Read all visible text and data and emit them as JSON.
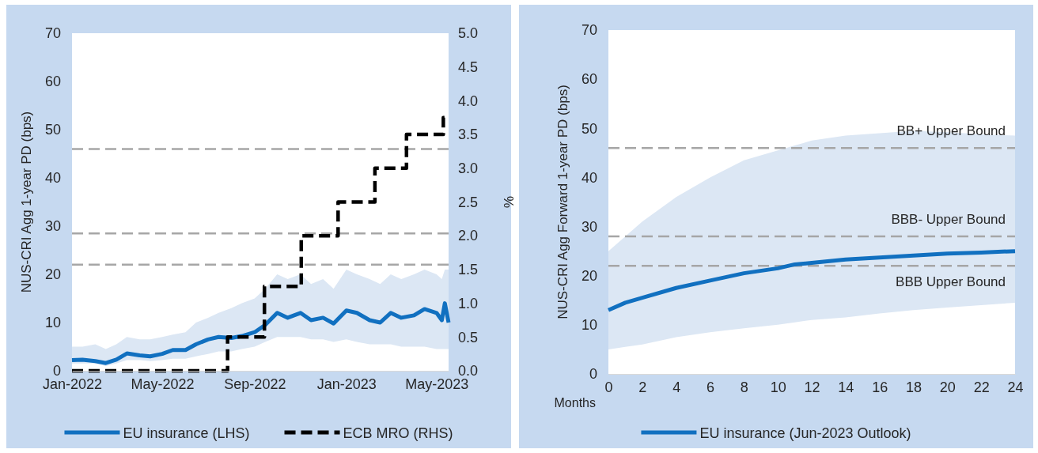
{
  "chart_data": [
    {
      "type": "line",
      "ylabel": "NUS-CRI Agg 1-year PD (bps)",
      "y2label": "%",
      "xlim": [
        "2022-01-01",
        "2023-05-17"
      ],
      "xticks": [
        {
          "value": "2022-01-01",
          "label": "Jan-2022"
        },
        {
          "value": "2022-05-01",
          "label": "May-2022"
        },
        {
          "value": "2022-09-01",
          "label": "Sep-2022"
        },
        {
          "value": "2023-01-01",
          "label": "Jan-2023"
        },
        {
          "value": "2023-05-01",
          "label": "May-2023"
        }
      ],
      "ylim": [
        0,
        70
      ],
      "yticks": [
        0,
        10,
        20,
        30,
        40,
        50,
        60,
        70
      ],
      "y2lim": [
        0,
        5
      ],
      "y2ticks": [
        {
          "value": 0,
          "label": "0.0"
        },
        {
          "value": 0.5,
          "label": "0.5"
        },
        {
          "value": 1,
          "label": "1.0"
        },
        {
          "value": 1.5,
          "label": "1.5"
        },
        {
          "value": 2,
          "label": "2.0"
        },
        {
          "value": 2.5,
          "label": "2.5"
        },
        {
          "value": 3,
          "label": "3.0"
        },
        {
          "value": 3.5,
          "label": "3.5"
        },
        {
          "value": 4,
          "label": "4.0"
        },
        {
          "value": 4.5,
          "label": "4.5"
        },
        {
          "value": 5,
          "label": "5.0"
        }
      ],
      "grid": false,
      "legend": "bottom",
      "marker": "none",
      "ref_lines": [
        {
          "axis": "y",
          "value": 46,
          "color": "#a6a6a6",
          "line_style": "dashed"
        },
        {
          "axis": "y",
          "value": 28.5,
          "color": "#a6a6a6",
          "line_style": "dashed"
        },
        {
          "axis": "y",
          "value": 22,
          "color": "#a6a6a6",
          "line_style": "dashed"
        }
      ],
      "series": [
        {
          "name": "EU insurance (LHS)",
          "color": "#1170c0",
          "line_style": "solid",
          "x": [
            "2022-01-01",
            "2022-01-15",
            "2022-02-01",
            "2022-02-15",
            "2022-03-01",
            "2022-03-15",
            "2022-04-01",
            "2022-04-15",
            "2022-05-01",
            "2022-05-15",
            "2022-06-01",
            "2022-06-15",
            "2022-07-01",
            "2022-07-15",
            "2022-08-01",
            "2022-08-15",
            "2022-09-01",
            "2022-09-15",
            "2022-10-01",
            "2022-10-15",
            "2022-11-01",
            "2022-11-15",
            "2022-12-01",
            "2022-12-15",
            "2023-01-01",
            "2023-01-15",
            "2023-02-01",
            "2023-02-15",
            "2023-03-01",
            "2023-03-15",
            "2023-04-01",
            "2023-04-15",
            "2023-05-01",
            "2023-05-08",
            "2023-05-12",
            "2023-05-17"
          ],
          "values": [
            2.2,
            2.3,
            2.0,
            1.6,
            2.3,
            3.6,
            3.2,
            3.0,
            3.5,
            4.3,
            4.3,
            5.5,
            6.5,
            7.0,
            6.8,
            7.2,
            8.0,
            9.5,
            12.0,
            11.0,
            12.0,
            10.5,
            11.0,
            9.8,
            12.5,
            12.0,
            10.5,
            10.0,
            12.0,
            11.0,
            11.5,
            12.8,
            12.0,
            10.5,
            14.0,
            10.0
          ],
          "lower": [
            1.5,
            1.5,
            1.5,
            1.0,
            1.5,
            2.2,
            2.2,
            2.0,
            2.2,
            2.5,
            2.5,
            3.0,
            3.5,
            4.0,
            4.0,
            4.5,
            5.0,
            6.0,
            7.0,
            7.0,
            7.0,
            6.5,
            6.5,
            6.0,
            6.5,
            6.0,
            5.5,
            5.5,
            5.5,
            5.0,
            5.0,
            5.0,
            4.5,
            4.5,
            4.5,
            4.5
          ],
          "upper": [
            5,
            5,
            5.5,
            4.5,
            5.5,
            7,
            6.5,
            6.5,
            7,
            7.5,
            8,
            10,
            11,
            12,
            13,
            14,
            15,
            17,
            20,
            19,
            20,
            18,
            19,
            17,
            21,
            20,
            19,
            18,
            20,
            19,
            20,
            21,
            20,
            19,
            21,
            21
          ]
        },
        {
          "name": "ECB MRO (RHS)",
          "type": "step",
          "axis": "y2",
          "color": "#000000",
          "line_style": "dashed",
          "x": [
            "2022-01-01",
            "2022-07-27",
            "2022-09-14",
            "2022-11-02",
            "2022-12-21",
            "2023-02-08",
            "2023-03-22",
            "2023-05-10",
            "2023-05-17"
          ],
          "values": [
            0,
            0.5,
            1.25,
            2.0,
            2.5,
            3.0,
            3.5,
            3.75,
            3.75
          ]
        }
      ]
    },
    {
      "type": "line",
      "ylabel": "NUS-CRI Agg Forward 1-year PD (bps)",
      "xlabel": "Months",
      "xlim": [
        0,
        24
      ],
      "xticks": [
        0,
        2,
        4,
        6,
        8,
        10,
        12,
        14,
        16,
        18,
        20,
        22,
        24
      ],
      "ylim": [
        0,
        70
      ],
      "yticks": [
        0,
        10,
        20,
        30,
        40,
        50,
        60,
        70
      ],
      "grid": false,
      "legend": "bottom",
      "marker": "none",
      "ref_lines": [
        {
          "axis": "y",
          "value": 46,
          "label": "BB+ Upper Bound",
          "color": "#a6a6a6",
          "line_style": "dashed"
        },
        {
          "axis": "y",
          "value": 28,
          "label": "BBB- Upper Bound",
          "color": "#a6a6a6",
          "line_style": "dashed"
        },
        {
          "axis": "y",
          "value": 22,
          "label": "BBB Upper Bound",
          "color": "#a6a6a6",
          "line_style": "dashed"
        }
      ],
      "series": [
        {
          "name": "EU insurance (Jun-2023 Outlook)",
          "color": "#1170c0",
          "line_style": "solid",
          "x": [
            0,
            1,
            2,
            4,
            6,
            8,
            10,
            11,
            12,
            14,
            16,
            18,
            20,
            22,
            24
          ],
          "values": [
            13,
            14.5,
            15.5,
            17.5,
            19,
            20.5,
            21.5,
            22.3,
            22.6,
            23.3,
            23.7,
            24.1,
            24.5,
            24.7,
            25
          ],
          "lower": [
            5,
            5.5,
            6,
            7.5,
            8.5,
            9.3,
            10,
            10.5,
            11,
            11.5,
            12.3,
            13,
            13.5,
            14,
            14.5
          ],
          "upper": [
            25,
            28,
            31,
            36,
            40,
            43.5,
            45.5,
            46.5,
            47.5,
            48.5,
            49,
            49.5,
            49.2,
            48.8,
            48.5
          ]
        }
      ]
    }
  ]
}
